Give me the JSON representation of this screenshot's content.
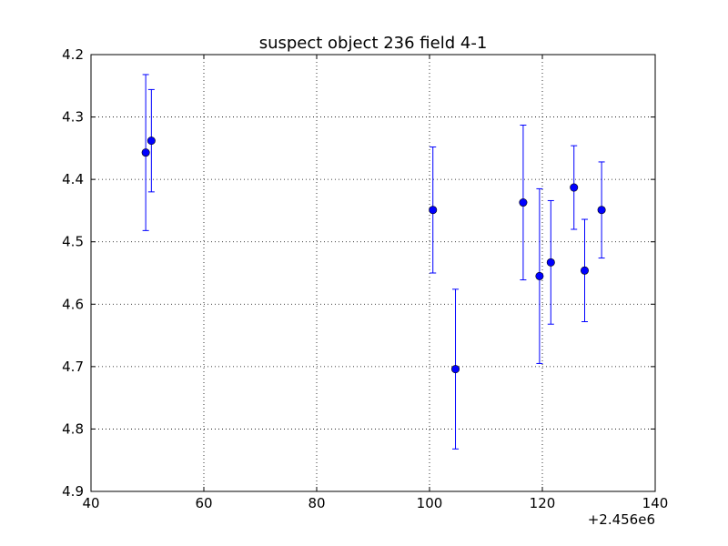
{
  "chart_data": {
    "type": "scatter",
    "title": "suspect object 236 field 4-1",
    "xlabel": "",
    "ylabel": "",
    "x_offset_label": "+2.456e6",
    "xlim": [
      40,
      140
    ],
    "ylim": [
      4.9,
      4.2
    ],
    "y_inverted": true,
    "x_ticks": [
      40,
      60,
      80,
      100,
      120,
      140
    ],
    "y_ticks": [
      4.2,
      4.3,
      4.4,
      4.5,
      4.6,
      4.7,
      4.8,
      4.9
    ],
    "x_tick_labels": [
      "40",
      "60",
      "80",
      "100",
      "120",
      "140"
    ],
    "y_tick_labels": [
      "4.2",
      "4.3",
      "4.4",
      "4.5",
      "4.6",
      "4.7",
      "4.8",
      "4.9"
    ],
    "grid": true,
    "marker_color": "#0000ff",
    "series": [
      {
        "points": [
          {
            "x": 49.7,
            "y": 4.357,
            "err": 0.125
          },
          {
            "x": 50.7,
            "y": 4.338,
            "err": 0.082
          },
          {
            "x": 100.6,
            "y": 4.449,
            "err": 0.101
          },
          {
            "x": 104.6,
            "y": 4.704,
            "err": 0.128
          },
          {
            "x": 116.6,
            "y": 4.437,
            "err": 0.124
          },
          {
            "x": 119.5,
            "y": 4.555,
            "err": 0.14
          },
          {
            "x": 121.5,
            "y": 4.533,
            "err": 0.099
          },
          {
            "x": 125.6,
            "y": 4.413,
            "err": 0.067
          },
          {
            "x": 127.5,
            "y": 4.546,
            "err": 0.082
          },
          {
            "x": 130.5,
            "y": 4.449,
            "err": 0.077
          }
        ]
      }
    ]
  }
}
